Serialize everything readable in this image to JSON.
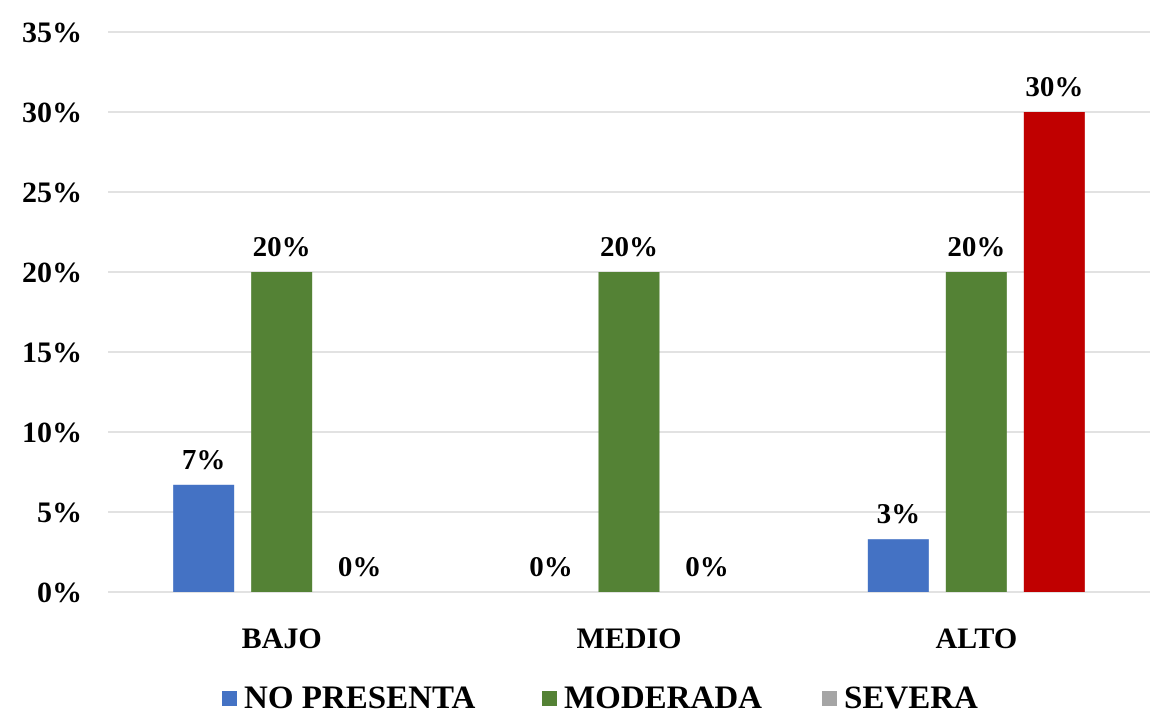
{
  "chart_data": {
    "type": "bar",
    "categories": [
      "BAJO",
      "MEDIO",
      "ALTO"
    ],
    "series": [
      {
        "name": "NO PRESENTA",
        "color": "#4472c4",
        "values": [
          6.7,
          0,
          3.3
        ],
        "labels": [
          "7%",
          "0%",
          "3%"
        ]
      },
      {
        "name": "MODERADA",
        "color": "#548235",
        "values": [
          20,
          20,
          20
        ],
        "labels": [
          "20%",
          "20%",
          "20%"
        ]
      },
      {
        "name": "SEVERA",
        "color": "#c00000",
        "legend_color": "#a5a5a5",
        "values": [
          0,
          0,
          30
        ],
        "labels": [
          "0%",
          "0%",
          "30%"
        ]
      }
    ],
    "ylim": [
      0,
      35
    ],
    "yticks": [
      0,
      5,
      10,
      15,
      20,
      25,
      30,
      35
    ],
    "ytick_labels": [
      "0%",
      "5%",
      "10%",
      "15%",
      "20%",
      "25%",
      "30%",
      "35%"
    ],
    "grid": true,
    "legend_position": "bottom",
    "title": "",
    "xlabel": "",
    "ylabel": ""
  }
}
